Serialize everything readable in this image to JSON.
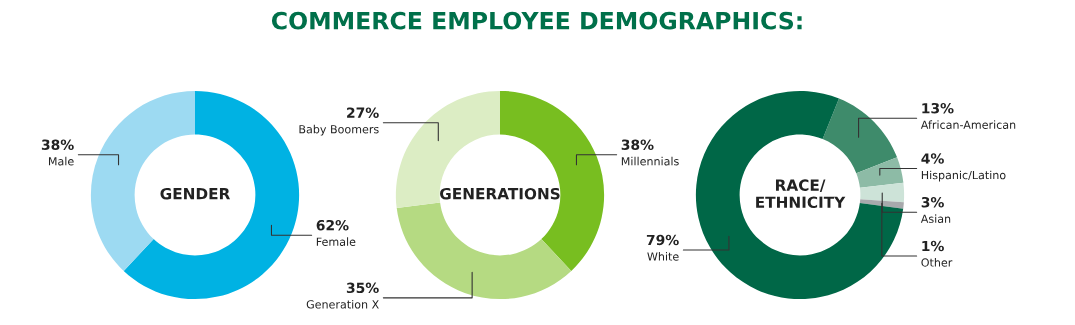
{
  "chart_data": [
    {
      "type": "donut",
      "title": "GENDER",
      "annotations": [
        "COMMERCE EMPLOYEE DEMOGRAPHICS:"
      ],
      "categories": [
        "Female",
        "Male"
      ],
      "values": [
        62,
        38
      ],
      "value_labels": [
        "62%",
        "38%"
      ],
      "colors": [
        "#00b2e3",
        "#9ddaf2"
      ]
    },
    {
      "type": "donut",
      "title": "GENERATIONS",
      "categories": [
        "Millennials",
        "Generation X",
        "Baby Boomers"
      ],
      "values": [
        38,
        35,
        27
      ],
      "value_labels": [
        "38%",
        "35%",
        "27%"
      ],
      "colors": [
        "#78be20",
        "#b5da82",
        "#dcedc4"
      ]
    },
    {
      "type": "donut",
      "title": "RACE/\nETHNICITY",
      "categories": [
        "African-American",
        "Hispanic/Latino",
        "Asian",
        "Other",
        "White"
      ],
      "values": [
        13,
        4,
        3,
        1,
        79
      ],
      "value_labels": [
        "13%",
        "4%",
        "3%",
        "1%",
        "79%"
      ],
      "colors": [
        "#3e8b6b",
        "#8dbba6",
        "#cde3d8",
        "#a7a9ac",
        "#006747"
      ]
    }
  ]
}
